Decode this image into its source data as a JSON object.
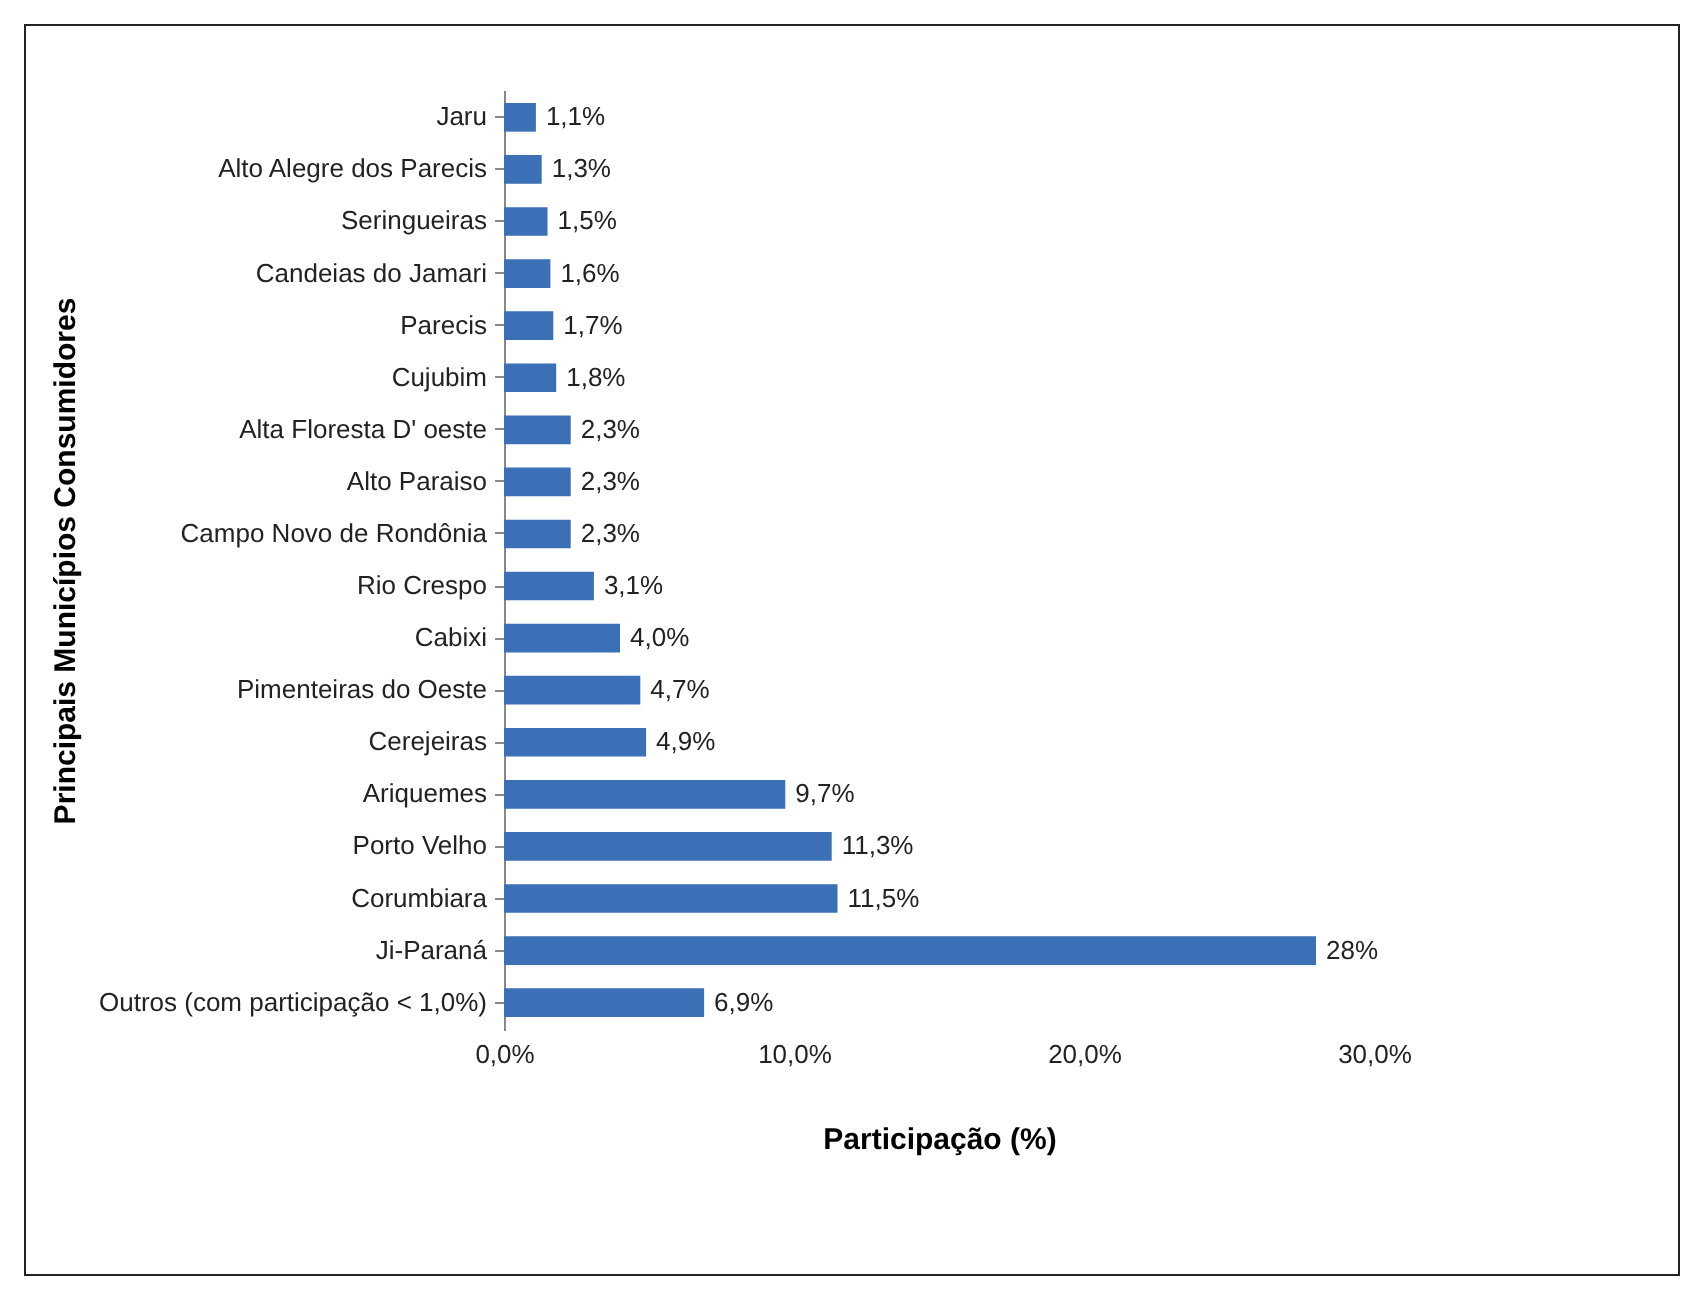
{
  "chart_data": {
    "type": "bar",
    "orientation": "horizontal",
    "xlabel": "Participação (%)",
    "ylabel": "Principais  Municípios Consumidores",
    "categories": [
      "Jaru",
      "Alto Alegre dos Parecis",
      "Seringueiras",
      "Candeias do Jamari",
      "Parecis",
      "Cujubim",
      "Alta Floresta  D' oeste",
      "Alto Paraiso",
      "Campo Novo de Rondônia",
      "Rio Crespo",
      "Cabixi",
      "Pimenteiras do Oeste",
      "Cerejeiras",
      "Ariquemes",
      "Porto Velho",
      "Corumbiara",
      "Ji-Paraná",
      "Outros (com participação < 1,0%)"
    ],
    "values": [
      1.1,
      1.3,
      1.5,
      1.6,
      1.7,
      1.8,
      2.3,
      2.3,
      2.3,
      3.1,
      4.0,
      4.7,
      4.9,
      9.7,
      11.3,
      11.5,
      28,
      6.9
    ],
    "value_labels": [
      "1,1%",
      "1,3%",
      "1,5%",
      "1,6%",
      "1,7%",
      "1,8%",
      "2,3%",
      "2,3%",
      "2,3%",
      "3,1%",
      "4,0%",
      "4,7%",
      "4,9%",
      "9,7%",
      "11,3%",
      "11,5%",
      "28%",
      "6,9%"
    ],
    "color": "#3b6fb6",
    "xlim": [
      0,
      30
    ],
    "xticks": [
      {
        "value": 0,
        "label": "0,0%"
      },
      {
        "value": 10,
        "label": "10,0%"
      },
      {
        "value": 20,
        "label": "20,0%"
      },
      {
        "value": 30,
        "label": "30,0%"
      }
    ],
    "grid": false
  }
}
